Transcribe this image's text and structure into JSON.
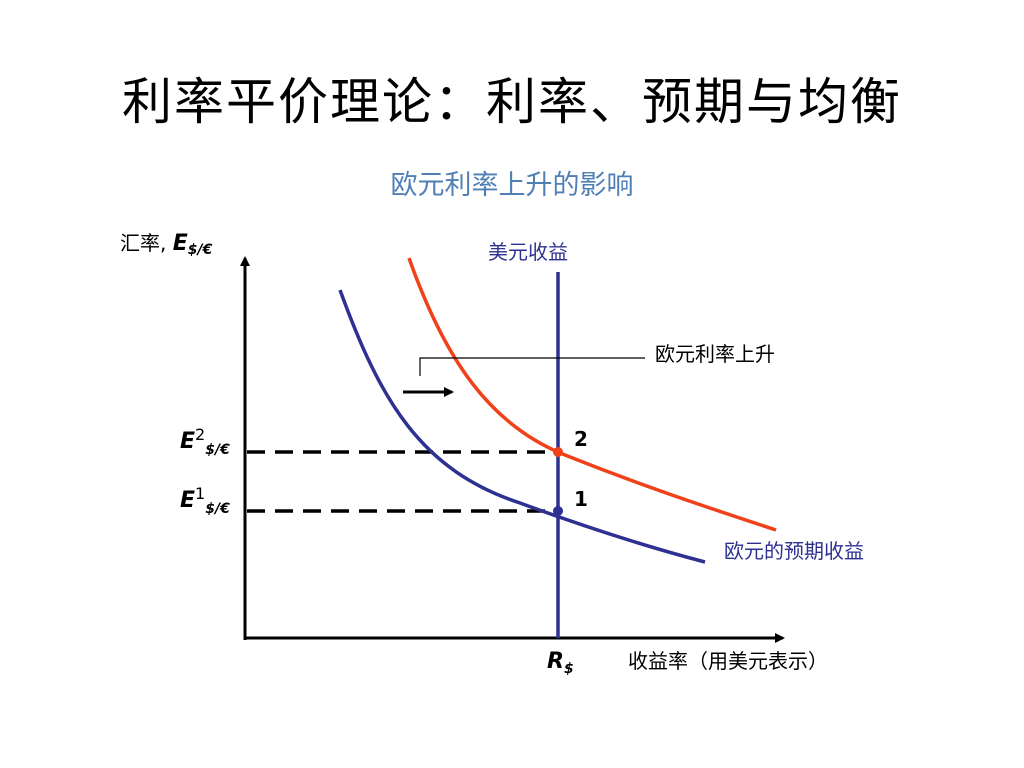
{
  "title": "利率平价理论：利率、预期与均衡",
  "subtitle": "欧元利率上升的影响",
  "y_axis_label": {
    "text": "汇率, ",
    "var": "E",
    "sub": "$/€"
  },
  "x_axis_label": "收益率（用美元表示）",
  "rs_label": {
    "var": "R",
    "sub": "$"
  },
  "e2_label": {
    "var": "E",
    "sup": "2",
    "sub": "$/€"
  },
  "e1_label": {
    "var": "E",
    "sup": "1",
    "sub": "$/€"
  },
  "dollar_return_label": "美元收益",
  "euro_rate_rise_label": "欧元利率上升",
  "euro_expected_return_label": "欧元的预期收益",
  "point_labels": {
    "p2": "2",
    "p1": "1"
  },
  "colors": {
    "blue_curve": "#2e3191",
    "red_curve": "#f0411b",
    "subtitle": "#4f7fb5",
    "label_blue": "#2e3191"
  }
}
